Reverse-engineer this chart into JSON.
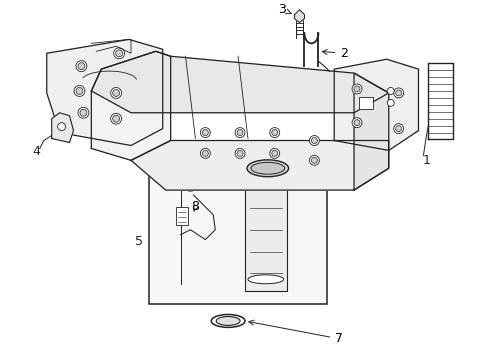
{
  "bg_color": "#ffffff",
  "line_color": "#222222",
  "figsize": [
    4.9,
    3.6
  ],
  "dpi": 100,
  "label_fontsize": 9
}
